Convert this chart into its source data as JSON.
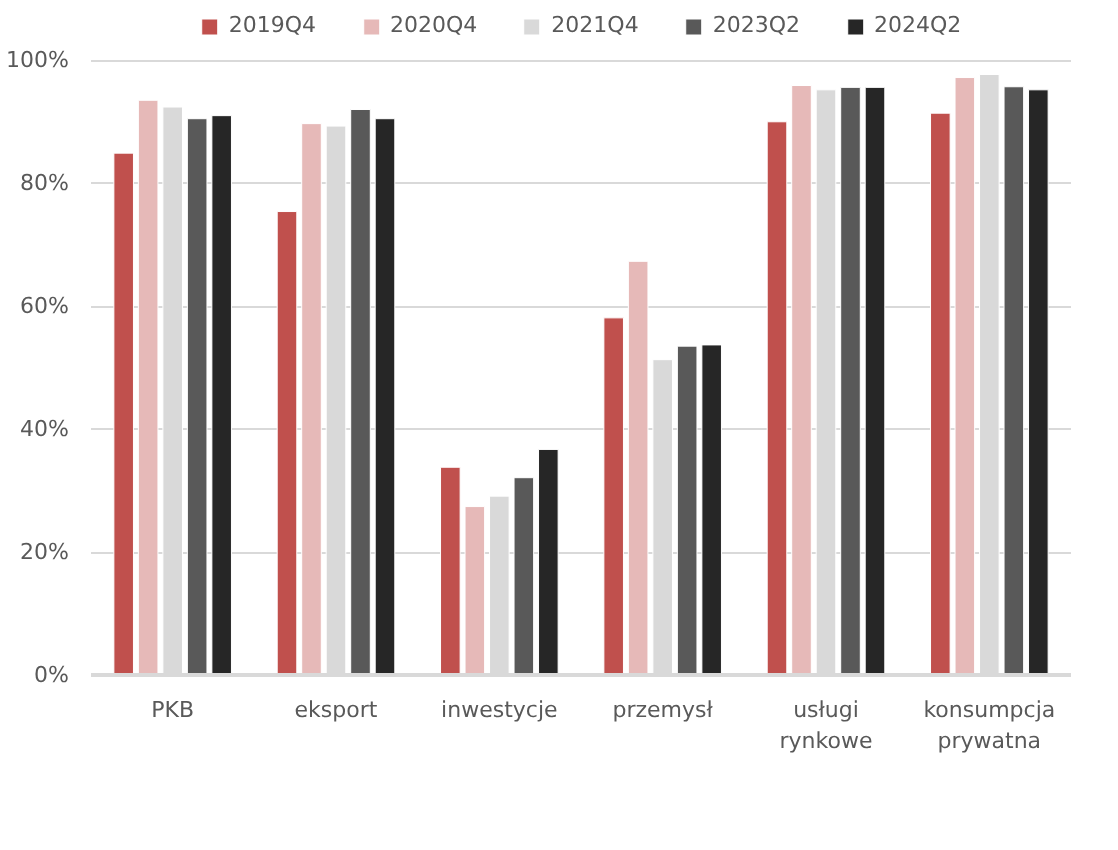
{
  "chart_data": {
    "type": "bar",
    "categories": [
      "PKB",
      "eksport",
      "inwestycje",
      "przemysł",
      "usługi\nrynkowe",
      "konsumpcja\nprywatna"
    ],
    "series": [
      {
        "name": "2019Q4",
        "color": "#c0504d",
        "values": [
          84.9,
          75.4,
          33.8,
          58.1,
          90.0,
          91.4
        ]
      },
      {
        "name": "2020Q4",
        "color": "#e6b9b8",
        "values": [
          93.5,
          89.7,
          27.4,
          67.3,
          95.9,
          97.2
        ]
      },
      {
        "name": "2021Q4",
        "color": "#d9d9d9",
        "values": [
          92.4,
          89.3,
          29.1,
          51.3,
          95.2,
          97.7
        ]
      },
      {
        "name": "2023Q2",
        "color": "#595959",
        "values": [
          90.5,
          92.0,
          32.1,
          53.5,
          95.6,
          95.7
        ]
      },
      {
        "name": "2024Q2",
        "color": "#262626",
        "values": [
          91.0,
          90.5,
          36.7,
          53.7,
          95.6,
          95.2
        ]
      }
    ],
    "ylim": [
      0,
      100
    ],
    "yticks": [
      {
        "value": 0,
        "label": "0%"
      },
      {
        "value": 20,
        "label": "20%"
      },
      {
        "value": 40,
        "label": "40%"
      },
      {
        "value": 60,
        "label": "60%"
      },
      {
        "value": 80,
        "label": "80%"
      },
      {
        "value": 100,
        "label": "100%"
      }
    ],
    "grid": "y",
    "legend": "top"
  }
}
